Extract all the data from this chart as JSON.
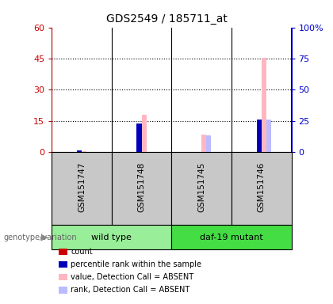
{
  "title": "GDS2549 / 185711_at",
  "samples": [
    "GSM151747",
    "GSM151748",
    "GSM151745",
    "GSM151746"
  ],
  "left_ylim": [
    0,
    60
  ],
  "left_yticks": [
    0,
    15,
    30,
    45,
    60
  ],
  "right_ylim": [
    0,
    100
  ],
  "right_yticks": [
    0,
    25,
    50,
    75,
    100
  ],
  "left_color": "#CC0000",
  "right_color": "#0000CC",
  "bar_width": 0.08,
  "bars": {
    "count": {
      "color": "#CC0000",
      "values": [
        0,
        0,
        0,
        0
      ]
    },
    "percentile_rank": {
      "color": "#0000BB",
      "values": [
        0.6,
        13.8,
        0,
        15.8
      ]
    },
    "value_absent": {
      "color": "#FFB6C1",
      "values": [
        0.3,
        17.8,
        8.2,
        45.5
      ]
    },
    "rank_absent": {
      "color": "#BBBBFF",
      "values": [
        0,
        0,
        8.0,
        15.8
      ]
    }
  },
  "bar_offsets": [
    -0.12,
    -0.04,
    0.04,
    0.12
  ],
  "legend": [
    {
      "label": "count",
      "color": "#CC0000"
    },
    {
      "label": "percentile rank within the sample",
      "color": "#0000BB"
    },
    {
      "label": "value, Detection Call = ABSENT",
      "color": "#FFB6C1"
    },
    {
      "label": "rank, Detection Call = ABSENT",
      "color": "#BBBBFF"
    }
  ],
  "group_spans": [
    {
      "label": "wild type",
      "start": 0,
      "end": 1,
      "color": "#99EE99"
    },
    {
      "label": "daf-19 mutant",
      "start": 2,
      "end": 3,
      "color": "#44DD44"
    }
  ],
  "sample_bg": "#C8C8C8",
  "plot_bg": "#FFFFFF"
}
